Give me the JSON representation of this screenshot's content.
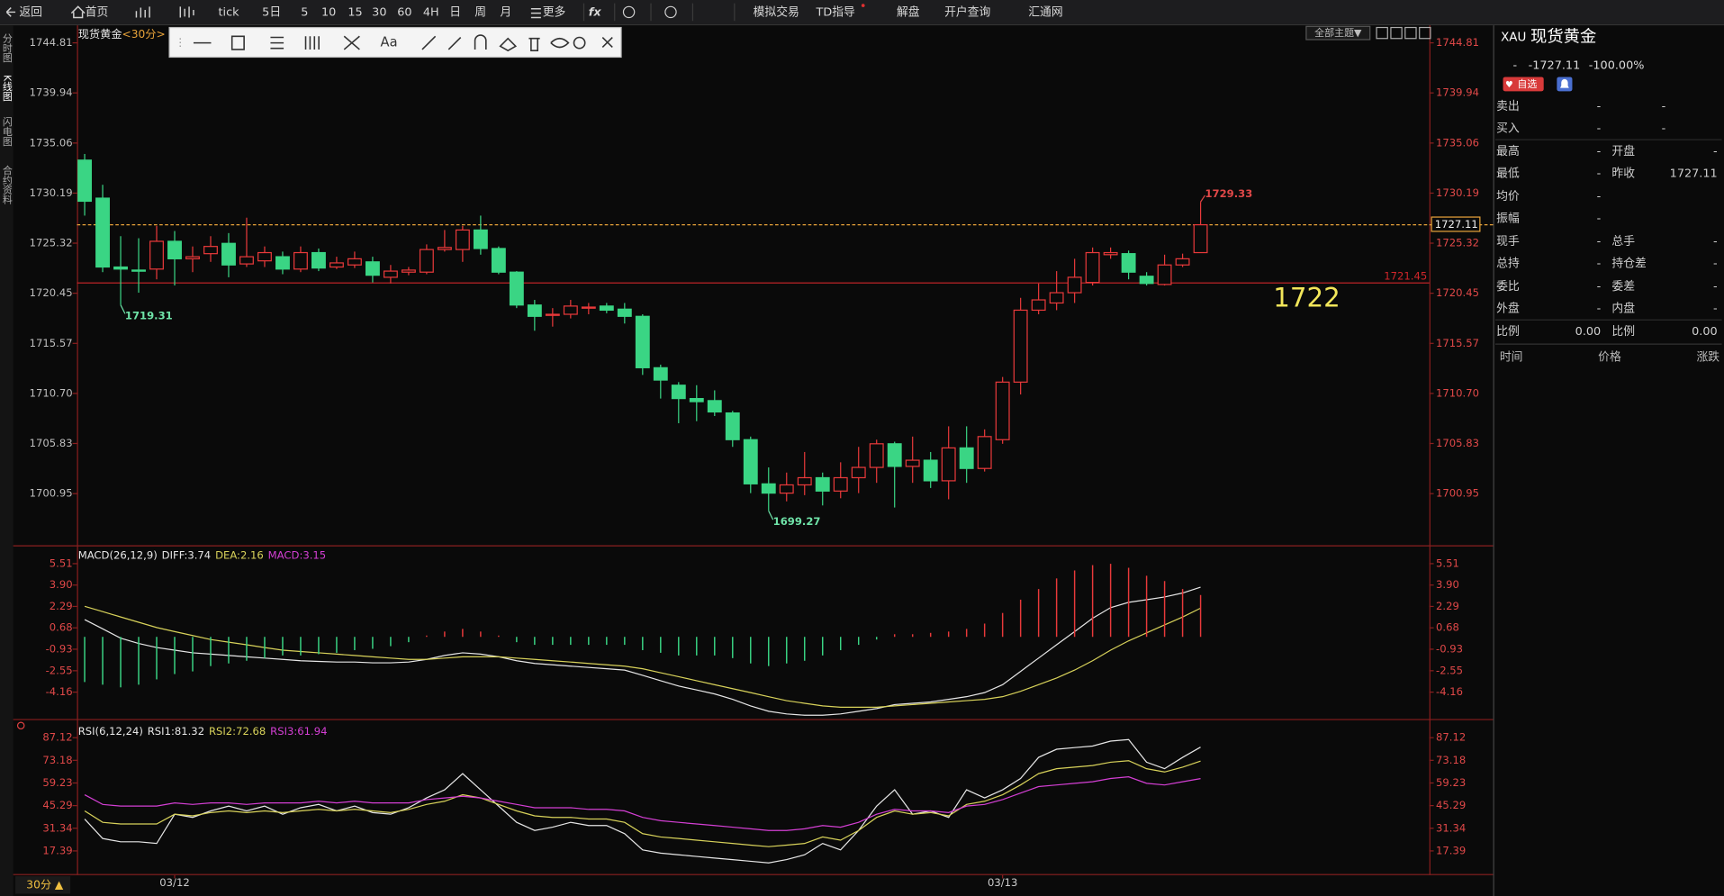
{
  "toolbar": {
    "items": [
      "返回",
      "首页",
      "tick",
      "5日",
      "5",
      "10",
      "15",
      "30",
      "60",
      "4H",
      "日",
      "周",
      "月",
      "更多",
      "fx",
      "模拟交易",
      "TD指导",
      "解盘",
      "开户查询",
      "汇通网"
    ]
  },
  "side_tabs": [
    "分时图",
    "K线图",
    "闪电图",
    "合约资料"
  ],
  "drawing_tools": {
    "font_button": "Aa"
  },
  "theme_button": "全部主题▼",
  "period_selector": "30分 ▲",
  "quote_panel": {
    "code": "XAU",
    "name": "现货黄金",
    "change": "-",
    "last": "-1727.11",
    "change_pct": "-100.00%",
    "tag": "自选",
    "rows": [
      [
        "卖出",
        "-",
        "-"
      ],
      [
        "买入",
        "-",
        "-"
      ],
      [
        "最高",
        "-",
        "开盘",
        "-"
      ],
      [
        "最低",
        "-",
        "昨收",
        "1727.11"
      ],
      [
        "均价",
        "-"
      ],
      [
        "振幅",
        "-"
      ],
      [
        "现手",
        "-",
        "总手",
        "-"
      ],
      [
        "总持",
        "-",
        "持仓差",
        "-"
      ],
      [
        "委比",
        "-",
        "委差",
        "-"
      ],
      [
        "外盘",
        "-",
        "内盘",
        "-"
      ],
      [
        "比例",
        "0.00",
        "比例",
        "0.00"
      ]
    ],
    "columns": [
      "时间",
      "价格",
      "涨跌"
    ]
  },
  "chart_data": [
    {
      "type": "candlestick",
      "title": "现货黄金",
      "subtitle": "<30分>",
      "up_color": "#e8393a",
      "down_color": "#3ad584",
      "categories": [
        null,
        null,
        null,
        null,
        null,
        "03/12",
        null,
        null,
        null,
        null,
        null,
        null,
        null,
        null,
        null,
        null,
        null,
        null,
        null,
        null,
        null,
        null,
        null,
        null,
        null,
        null,
        null,
        null,
        null,
        null,
        null,
        null,
        null,
        null,
        null,
        null,
        null,
        null,
        null,
        null,
        null,
        null,
        null,
        null,
        null,
        null,
        null,
        null,
        null,
        null,
        null,
        "03/13",
        null,
        null,
        null,
        null,
        null,
        null,
        null,
        null,
        null,
        null,
        null
      ],
      "open": [
        1733.4,
        1729.7,
        1723.0,
        1722.7,
        1722.8,
        1725.5,
        1723.8,
        1724.3,
        1725.3,
        1723.3,
        1723.6,
        1724.0,
        1722.8,
        1724.4,
        1723.0,
        1723.2,
        1723.5,
        1722.0,
        1722.5,
        1722.5,
        1724.7,
        1724.7,
        1726.6,
        1724.8,
        1722.5,
        1719.3,
        1718.3,
        1718.4,
        1719.0,
        1719.2,
        1718.9,
        1718.2,
        1713.2,
        1711.5,
        1710.2,
        1710.0,
        1708.8,
        1706.2,
        1701.9,
        1701.0,
        1701.8,
        1702.5,
        1701.2,
        1702.5,
        1703.5,
        1705.8,
        1703.6,
        1704.2,
        1702.2,
        1705.4,
        1703.4,
        1706.2,
        1711.8,
        1718.8,
        1719.5,
        1720.5,
        1721.5,
        1724.2,
        1724.3,
        1722.1,
        1721.3,
        1723.2,
        1724.4
      ],
      "high": [
        1734.0,
        1731.0,
        1726.0,
        1725.8,
        1727.0,
        1726.5,
        1725.0,
        1726.0,
        1726.3,
        1727.8,
        1725.0,
        1724.5,
        1725.0,
        1724.8,
        1724.0,
        1724.5,
        1724.0,
        1723.2,
        1723.0,
        1725.2,
        1726.6,
        1727.0,
        1728.0,
        1725.0,
        1722.6,
        1719.8,
        1719.0,
        1719.8,
        1719.5,
        1719.5,
        1719.5,
        1718.4,
        1713.5,
        1711.8,
        1711.5,
        1711.0,
        1709.0,
        1706.5,
        1703.5,
        1703.0,
        1705.0,
        1703.0,
        1704.0,
        1705.5,
        1706.2,
        1706.0,
        1706.5,
        1705.0,
        1707.5,
        1707.5,
        1707.2,
        1712.3,
        1720.0,
        1721.4,
        1722.6,
        1723.8,
        1724.9,
        1724.9,
        1724.6,
        1722.5,
        1724.2,
        1724.3,
        1729.33
      ],
      "low": [
        1728.0,
        1722.5,
        1719.31,
        1720.5,
        1721.8,
        1721.2,
        1722.5,
        1723.5,
        1722.0,
        1723.0,
        1723.0,
        1722.3,
        1722.5,
        1722.6,
        1722.8,
        1722.9,
        1721.5,
        1721.4,
        1722.2,
        1722.3,
        1724.5,
        1723.5,
        1724.2,
        1722.3,
        1719.0,
        1716.8,
        1717.2,
        1718.0,
        1718.4,
        1718.5,
        1717.5,
        1712.5,
        1710.2,
        1707.8,
        1708.0,
        1708.5,
        1705.5,
        1701.0,
        1699.27,
        1700.2,
        1700.8,
        1699.8,
        1700.5,
        1701.0,
        1702.0,
        1699.6,
        1702.0,
        1701.5,
        1700.4,
        1702.0,
        1703.1,
        1705.8,
        1710.6,
        1718.4,
        1718.8,
        1719.5,
        1721.2,
        1723.8,
        1721.8,
        1721.2,
        1721.2,
        1723.0,
        1724.4
      ],
      "close": [
        1729.4,
        1723.0,
        1722.8,
        1722.6,
        1725.5,
        1723.8,
        1724.0,
        1725.0,
        1723.2,
        1724.0,
        1724.4,
        1722.8,
        1724.4,
        1722.9,
        1723.4,
        1723.8,
        1722.2,
        1722.6,
        1722.7,
        1724.7,
        1724.9,
        1726.6,
        1724.8,
        1722.5,
        1719.3,
        1718.2,
        1718.4,
        1719.2,
        1719.1,
        1718.8,
        1718.2,
        1713.2,
        1712.0,
        1710.2,
        1709.9,
        1708.9,
        1706.2,
        1701.9,
        1701.0,
        1701.8,
        1702.5,
        1701.2,
        1702.5,
        1703.5,
        1705.8,
        1703.6,
        1704.2,
        1702.2,
        1705.4,
        1703.4,
        1706.5,
        1711.8,
        1718.8,
        1719.8,
        1720.5,
        1722.0,
        1724.4,
        1724.4,
        1722.5,
        1721.4,
        1723.2,
        1723.8,
        1727.11
      ],
      "ylim": [
        1696.03,
        1745.77
      ],
      "yticks": [
        1744.81,
        1739.94,
        1735.06,
        1730.19,
        1725.32,
        1720.45,
        1715.57,
        {
          "value": 1710.7,
          "label": "1710.70"
        },
        1705.83,
        1700.95
      ],
      "reference_lines": [
        {
          "value": 1727.11,
          "color": "#e8a33a",
          "style": "dashed"
        },
        {
          "value": 1721.45,
          "color": "#d0262a",
          "style": "solid"
        }
      ],
      "annotations": [
        {
          "x": 2,
          "y": 1719.31
        },
        {
          "x": 38,
          "y": 1699.27
        },
        {
          "x": 62,
          "y": 1729.33
        }
      ],
      "annotation": "1722"
    },
    {
      "type": "macd",
      "title": "MACD(26,12,9)",
      "series": [
        {
          "name": "DIFF",
          "label": "DIFF:3.74",
          "type": "line",
          "color": "#e6e6e6",
          "values": [
            1.3,
            0.6,
            -0.1,
            -0.5,
            -0.8,
            -1.0,
            -1.2,
            -1.3,
            -1.4,
            -1.5,
            -1.6,
            -1.7,
            -1.8,
            -1.85,
            -1.9,
            -1.9,
            -1.95,
            -1.95,
            -1.9,
            -1.7,
            -1.4,
            -1.2,
            -1.3,
            -1.5,
            -1.8,
            -2.0,
            -2.1,
            -2.2,
            -2.3,
            -2.4,
            -2.5,
            -2.9,
            -3.3,
            -3.7,
            -4.0,
            -4.3,
            -4.7,
            -5.2,
            -5.6,
            -5.8,
            -5.9,
            -5.9,
            -5.8,
            -5.6,
            -5.4,
            -5.1,
            -5.0,
            -4.9,
            -4.7,
            -4.5,
            -4.2,
            -3.6,
            -2.6,
            -1.6,
            -0.6,
            0.4,
            1.4,
            2.2,
            2.6,
            2.8,
            3.0,
            3.3,
            3.74
          ]
        },
        {
          "name": "DEA",
          "label": "DEA:2.16",
          "type": "line",
          "color": "#d8d25a",
          "values": [
            2.3,
            1.9,
            1.5,
            1.1,
            0.7,
            0.4,
            0.1,
            -0.2,
            -0.4,
            -0.6,
            -0.8,
            -1.0,
            -1.1,
            -1.2,
            -1.3,
            -1.4,
            -1.5,
            -1.6,
            -1.7,
            -1.7,
            -1.6,
            -1.5,
            -1.5,
            -1.5,
            -1.6,
            -1.7,
            -1.8,
            -1.9,
            -2.0,
            -2.1,
            -2.2,
            -2.4,
            -2.7,
            -3.0,
            -3.3,
            -3.6,
            -3.9,
            -4.2,
            -4.5,
            -4.8,
            -5.0,
            -5.2,
            -5.3,
            -5.3,
            -5.3,
            -5.2,
            -5.1,
            -5.0,
            -4.9,
            -4.8,
            -4.7,
            -4.5,
            -4.1,
            -3.6,
            -3.1,
            -2.5,
            -1.8,
            -1.0,
            -0.3,
            0.3,
            0.9,
            1.5,
            2.16
          ]
        },
        {
          "name": "MACD",
          "label": "MACD:3.15",
          "type": "bar",
          "color": "#d43fd4",
          "up_color": "#e8393a",
          "down_color": "#3ad584",
          "values": [
            -3.4,
            -3.6,
            -3.8,
            -3.6,
            -3.2,
            -2.8,
            -2.6,
            -2.2,
            -2.0,
            -1.8,
            -1.6,
            -1.4,
            -1.4,
            -1.3,
            -1.2,
            -1.0,
            -0.9,
            -0.7,
            -0.4,
            0.1,
            0.4,
            0.6,
            0.4,
            0.1,
            -0.4,
            -0.6,
            -0.6,
            -0.6,
            -0.6,
            -0.6,
            -0.6,
            -1.0,
            -1.2,
            -1.4,
            -1.4,
            -1.4,
            -1.6,
            -2.0,
            -2.2,
            -2.0,
            -1.8,
            -1.4,
            -1.0,
            -0.6,
            -0.2,
            0.2,
            0.2,
            0.3,
            0.4,
            0.6,
            1.0,
            1.8,
            2.8,
            3.6,
            4.4,
            5.0,
            5.4,
            5.5,
            5.2,
            4.6,
            4.2,
            3.6,
            3.15
          ]
        }
      ],
      "ylim": [
        -6.1,
        6.81
      ],
      "yticks": [
        5.51,
        {
          "value": 3.9,
          "label": "3.90"
        },
        2.29,
        0.68,
        -0.93,
        -2.55,
        -4.16
      ]
    },
    {
      "type": "rsi",
      "title": "RSI(6,12,24)",
      "series": [
        {
          "name": "RSI1",
          "label": "RSI1:81.32",
          "type": "line",
          "color": "#e6e6e6",
          "values": [
            37,
            25,
            23,
            23,
            22,
            40,
            38,
            42,
            45,
            42,
            45,
            40,
            44,
            46,
            42,
            45,
            41,
            40,
            44,
            50,
            55,
            65,
            55,
            45,
            35,
            30,
            32,
            35,
            33,
            33,
            28,
            18,
            16,
            15,
            14,
            13,
            12,
            11,
            10,
            12,
            15,
            22,
            18,
            30,
            45,
            55,
            40,
            42,
            38,
            55,
            50,
            55,
            62,
            75,
            80,
            81,
            82,
            85,
            86,
            72,
            68,
            75,
            81.32
          ]
        },
        {
          "name": "RSI2",
          "label": "RSI2:72.68",
          "type": "line",
          "color": "#d8d25a",
          "values": [
            42,
            35,
            34,
            34,
            34,
            40,
            39,
            41,
            42,
            41,
            42,
            41,
            42,
            43,
            42,
            43,
            42,
            41,
            43,
            46,
            48,
            52,
            50,
            46,
            42,
            39,
            38,
            38,
            37,
            37,
            35,
            28,
            26,
            25,
            24,
            23,
            22,
            21,
            20,
            21,
            22,
            26,
            24,
            30,
            38,
            42,
            40,
            41,
            39,
            46,
            48,
            52,
            58,
            65,
            68,
            69,
            70,
            72,
            73,
            68,
            66,
            69,
            72.68
          ]
        },
        {
          "name": "RSI3",
          "label": "RSI3:61.94",
          "type": "line",
          "color": "#d43fd4",
          "values": [
            52,
            46,
            45,
            45,
            45,
            47,
            46,
            47,
            47,
            46,
            47,
            47,
            47,
            48,
            47,
            48,
            47,
            47,
            47,
            49,
            50,
            51,
            50,
            48,
            46,
            44,
            44,
            44,
            43,
            43,
            42,
            38,
            36,
            35,
            34,
            33,
            32,
            31,
            30,
            30,
            31,
            33,
            32,
            35,
            40,
            43,
            42,
            42,
            41,
            45,
            46,
            49,
            53,
            57,
            58,
            59,
            60,
            62,
            63,
            59,
            58,
            60,
            61.94
          ]
        }
      ],
      "ylim": [
        3.16,
        96.6
      ],
      "yticks": [
        87.12,
        73.18,
        59.23,
        45.29,
        31.34,
        17.39
      ]
    }
  ]
}
